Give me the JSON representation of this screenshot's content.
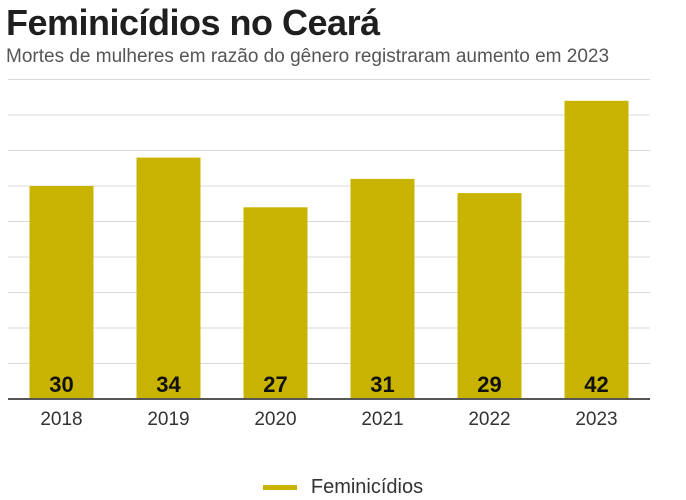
{
  "title": "Feminicídios no Ceará",
  "subtitle": "Mortes de mulheres em razão do gênero registraram aumento em 2023",
  "colors": {
    "bar": "#c8b400",
    "grid": "#d9d9d9",
    "axis": "#555555",
    "label": "#111111"
  },
  "chart_data": {
    "type": "bar",
    "categories": [
      "2018",
      "2019",
      "2020",
      "2021",
      "2022",
      "2023"
    ],
    "series": [
      {
        "name": "Feminicídios",
        "values": [
          30,
          34,
          27,
          31,
          29,
          42
        ]
      }
    ],
    "ylim": [
      0,
      45
    ],
    "grid": true,
    "legend": "bottom-center",
    "data_labels": "inside-bottom"
  },
  "legend": {
    "label": "Feminicídios"
  }
}
